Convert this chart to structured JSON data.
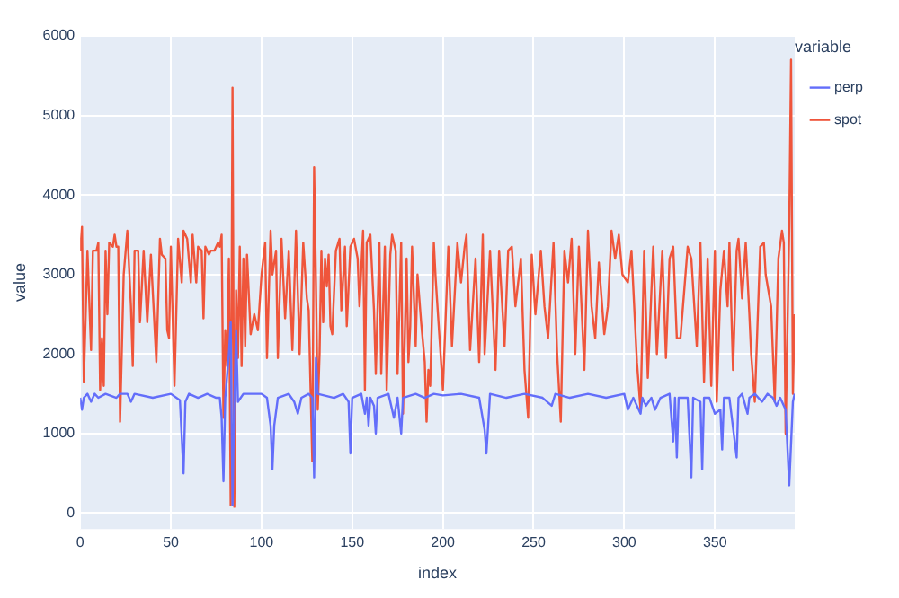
{
  "chart_data": {
    "type": "line",
    "xlabel": "index",
    "ylabel": "value",
    "legend_title": "variable",
    "legend": "top right",
    "grid": true,
    "marker": "none",
    "line_style": "solid",
    "xlim": [
      0,
      394
    ],
    "xticks": [
      0,
      50,
      100,
      150,
      200,
      250,
      300,
      350
    ],
    "ylim": [
      -200,
      6000
    ],
    "yticks": [
      0,
      1000,
      2000,
      3000,
      4000,
      5000,
      6000
    ],
    "series": [
      {
        "name": "perp",
        "color": "#636efa",
        "x": [
          0,
          1,
          2,
          4,
          6,
          8,
          10,
          14,
          20,
          22,
          26,
          28,
          30,
          40,
          50,
          55,
          57,
          58,
          60,
          65,
          70,
          75,
          77,
          78,
          79,
          80,
          82,
          83,
          84,
          85,
          86,
          87,
          90,
          100,
          103,
          105,
          106,
          107,
          109,
          115,
          118,
          120,
          122,
          126,
          128,
          129,
          130,
          131,
          140,
          145,
          148,
          149,
          150,
          155,
          157,
          158,
          159,
          160,
          162,
          163,
          164,
          170,
          173,
          175,
          177,
          178,
          185,
          190,
          195,
          200,
          210,
          220,
          223,
          224,
          226,
          235,
          245,
          255,
          260,
          262,
          270,
          280,
          290,
          300,
          302,
          305,
          309,
          310,
          312,
          315,
          317,
          320,
          325,
          327,
          328,
          329,
          330,
          335,
          337,
          338,
          342,
          343,
          344,
          347,
          350,
          353,
          354,
          355,
          358,
          362,
          363,
          365,
          368,
          369,
          372,
          376,
          379,
          382,
          384,
          386,
          389,
          391,
          393,
          394
        ],
        "values": [
          1450,
          1300,
          1450,
          1500,
          1400,
          1500,
          1450,
          1500,
          1450,
          1500,
          1500,
          1400,
          1500,
          1450,
          1500,
          1420,
          500,
          1400,
          1500,
          1450,
          1500,
          1450,
          1450,
          1200,
          400,
          1450,
          2000,
          2400,
          100,
          1450,
          2300,
          1400,
          1500,
          1500,
          1450,
          1100,
          550,
          1100,
          1450,
          1500,
          1400,
          1250,
          1450,
          1500,
          1450,
          450,
          1950,
          1500,
          1450,
          1500,
          1400,
          750,
          1450,
          1500,
          1250,
          1450,
          1100,
          1450,
          1350,
          1000,
          1450,
          1500,
          1200,
          1450,
          1000,
          1450,
          1500,
          1450,
          1500,
          1480,
          1500,
          1450,
          1050,
          750,
          1500,
          1450,
          1500,
          1450,
          1350,
          1500,
          1450,
          1500,
          1450,
          1500,
          1300,
          1450,
          1250,
          1450,
          1350,
          1450,
          1300,
          1450,
          1500,
          900,
          1450,
          700,
          1450,
          1450,
          450,
          1450,
          1400,
          550,
          1450,
          1450,
          1250,
          1300,
          800,
          1450,
          1450,
          700,
          1450,
          1500,
          1250,
          1450,
          1500,
          1400,
          1500,
          1450,
          1350,
          1450,
          1300,
          350,
          1400,
          1500
        ]
      },
      {
        "name": "spot",
        "color": "#ef553b",
        "x": [
          0,
          1,
          2,
          4,
          6,
          7,
          9,
          10,
          11,
          12,
          13,
          14,
          15,
          16,
          18,
          19,
          20,
          21,
          22,
          24,
          26,
          28,
          29,
          30,
          32,
          33,
          35,
          37,
          39,
          42,
          44,
          45,
          47,
          48,
          49,
          50,
          52,
          54,
          56,
          57,
          59,
          61,
          62,
          64,
          65,
          67,
          68,
          69,
          71,
          72,
          74,
          76,
          77,
          78,
          79,
          80,
          81,
          82,
          83,
          84,
          85,
          86,
          87,
          88,
          89,
          90,
          91,
          92,
          94,
          96,
          98,
          100,
          102,
          103,
          105,
          106,
          108,
          109,
          111,
          113,
          115,
          117,
          119,
          121,
          123,
          125,
          126,
          128,
          129,
          130,
          131,
          132,
          133,
          134,
          135,
          136,
          137,
          138,
          139,
          141,
          143,
          144,
          146,
          147,
          149,
          151,
          153,
          154,
          156,
          157,
          158,
          160,
          162,
          163,
          165,
          166,
          168,
          169,
          171,
          172,
          174,
          175,
          177,
          178,
          180,
          181,
          182,
          183,
          185,
          186,
          188,
          190,
          191,
          192,
          193,
          195,
          196,
          200,
          203,
          205,
          208,
          210,
          212,
          213,
          215,
          218,
          220,
          222,
          223,
          226,
          229,
          231,
          234,
          236,
          238,
          240,
          243,
          245,
          247,
          249,
          251,
          254,
          256,
          258,
          261,
          263,
          265,
          267,
          269,
          271,
          273,
          275,
          278,
          280,
          282,
          284,
          286,
          289,
          291,
          293,
          295,
          297,
          299,
          302,
          304,
          307,
          309,
          311,
          313,
          316,
          318,
          321,
          323,
          325,
          327,
          329,
          331,
          335,
          337,
          340,
          342,
          344,
          346,
          348,
          350,
          351,
          353,
          355,
          357,
          358,
          360,
          362,
          363,
          365,
          367,
          369,
          370,
          372,
          375,
          377,
          378,
          381,
          383,
          385,
          387,
          388,
          389,
          391,
          392,
          393,
          394
        ],
        "values": [
          3300,
          3600,
          1650,
          3300,
          2050,
          3300,
          3300,
          3400,
          1550,
          2200,
          1600,
          3300,
          2500,
          3400,
          3350,
          3500,
          3350,
          3350,
          1150,
          3000,
          3550,
          2600,
          1850,
          3300,
          3300,
          2400,
          3300,
          2400,
          3250,
          1900,
          3450,
          3250,
          3200,
          2300,
          2200,
          3350,
          1600,
          3450,
          2900,
          3550,
          3450,
          2900,
          3500,
          2900,
          3350,
          3300,
          2450,
          3350,
          3250,
          3300,
          3300,
          3400,
          3350,
          3500,
          1200,
          2300,
          1850,
          3200,
          100,
          5350,
          80,
          2800,
          1950,
          3350,
          1850,
          3200,
          2100,
          3250,
          2250,
          2500,
          2300,
          3000,
          3400,
          1950,
          3550,
          3000,
          3300,
          1950,
          3450,
          2450,
          3300,
          2050,
          3550,
          2000,
          3400,
          2700,
          2550,
          650,
          4350,
          2900,
          1300,
          2000,
          3300,
          2400,
          3200,
          2850,
          3250,
          2350,
          2250,
          3300,
          3450,
          2550,
          3350,
          2350,
          3350,
          3450,
          3200,
          2600,
          3550,
          1550,
          3400,
          3500,
          2550,
          1750,
          3400,
          1750,
          3350,
          1550,
          3250,
          3500,
          3300,
          1750,
          3400,
          1250,
          3200,
          1900,
          2350,
          3350,
          2100,
          3000,
          2400,
          1900,
          1150,
          1800,
          1600,
          3400,
          2950,
          1550,
          3350,
          2100,
          3400,
          2900,
          3350,
          3500,
          2050,
          3200,
          1900,
          3500,
          2000,
          3300,
          1800,
          3300,
          2100,
          3300,
          3350,
          2600,
          3200,
          1800,
          1200,
          3250,
          2500,
          3300,
          2600,
          2200,
          3400,
          2000,
          1150,
          3300,
          2900,
          3450,
          2000,
          3350,
          1800,
          3550,
          2600,
          2200,
          3150,
          2250,
          2600,
          3550,
          3200,
          3500,
          3000,
          2900,
          3300,
          1900,
          1300,
          3300,
          1700,
          3350,
          2000,
          3300,
          1950,
          3200,
          3350,
          2200,
          2200,
          3350,
          3200,
          2100,
          3400,
          1650,
          3200,
          1600,
          3300,
          1400,
          2800,
          3300,
          2600,
          3400,
          1800,
          3300,
          3450,
          2700,
          3400,
          2500,
          2000,
          1400,
          3350,
          3400,
          3000,
          2600,
          1400,
          3200,
          3550,
          3400,
          1000,
          3600,
          5700,
          1500,
          2500
        ]
      }
    ]
  }
}
